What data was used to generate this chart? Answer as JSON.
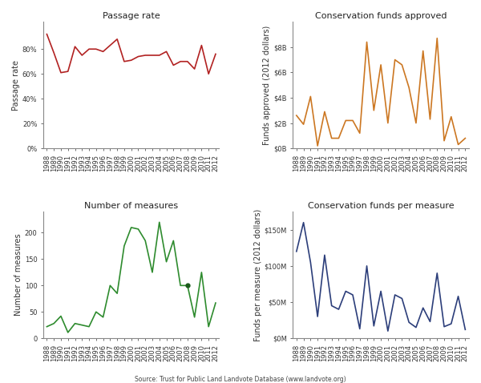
{
  "years": [
    1988,
    1989,
    1990,
    1991,
    1992,
    1993,
    1994,
    1995,
    1996,
    1997,
    1998,
    1999,
    2000,
    2001,
    2002,
    2003,
    2004,
    2005,
    2006,
    2007,
    2008,
    2009,
    2010,
    2011,
    2012
  ],
  "passage_rate": [
    0.92,
    0.77,
    0.61,
    0.62,
    0.82,
    0.75,
    0.8,
    0.8,
    0.78,
    0.83,
    0.88,
    0.7,
    0.71,
    0.74,
    0.75,
    0.75,
    0.75,
    0.78,
    0.67,
    0.7,
    0.7,
    0.64,
    0.83,
    0.6,
    0.76
  ],
  "conservation_funds": [
    2.6,
    1.9,
    4.1,
    0.2,
    2.9,
    0.8,
    0.8,
    2.2,
    2.2,
    1.2,
    8.4,
    3.0,
    6.6,
    2.0,
    7.0,
    6.6,
    4.8,
    2.0,
    7.7,
    2.3,
    8.7,
    0.6,
    2.5,
    0.3,
    0.8
  ],
  "num_measures": [
    22,
    28,
    42,
    11,
    28,
    25,
    22,
    50,
    40,
    100,
    85,
    175,
    210,
    207,
    185,
    125,
    220,
    145,
    185,
    100,
    100,
    40,
    125,
    22,
    67
  ],
  "funds_per_measure": [
    120,
    160,
    105,
    30,
    115,
    45,
    40,
    65,
    60,
    13,
    100,
    17,
    65,
    10,
    60,
    55,
    22,
    15,
    42,
    23,
    90,
    16,
    20,
    58,
    12
  ],
  "passage_color": "#b22222",
  "funds_color": "#cc7722",
  "measures_color": "#2e8b2e",
  "per_measure_color": "#2c3e7a",
  "bg_color": "#ffffff",
  "plot_bg": "#ffffff",
  "title_fontsize": 8,
  "tick_fontsize": 6,
  "label_fontsize": 7,
  "source_text": "Source: Trust for Public Land Landvote Database (www.landvote.org)"
}
